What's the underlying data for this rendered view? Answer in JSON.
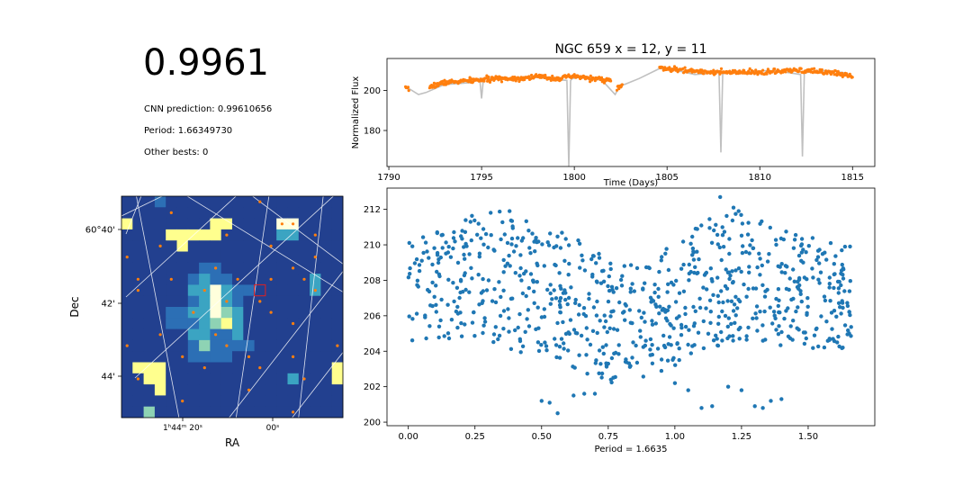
{
  "summary": {
    "score": "0.9961",
    "lines": [
      "CNN prediction: 0.99610656",
      "Period: 1.66349730",
      "Other bests: 0"
    ]
  },
  "chart_data": [
    {
      "id": "lightcurve",
      "type": "line",
      "title": "NGC 659 x = 12, y = 11",
      "xlabel": "Time (Days)",
      "ylabel": "Normalized Flux",
      "xlim": [
        1789.9,
        1816.2
      ],
      "ylim": [
        162,
        216
      ],
      "xticks": [
        1790,
        1795,
        1800,
        1805,
        1810,
        1815
      ],
      "yticks": [
        180,
        200
      ],
      "series": [
        {
          "color": "#c0c0c0",
          "x": [
            1790.9,
            1791.6,
            1792.0,
            1793.0,
            1794.5,
            1794.9,
            1795.0,
            1795.1,
            1796.5,
            1797.5,
            1798.5,
            1799.6,
            1799.7,
            1799.8,
            1799.9,
            1800.5,
            1801.5,
            1802.2,
            1802.5,
            1802.7,
            1803.5,
            1804.6,
            1805.5,
            1806.5,
            1807.8,
            1807.9,
            1808.0,
            1808.1,
            1809.0,
            1810.5,
            1811.5,
            1812.2,
            1812.3,
            1812.4,
            1812.5,
            1813.5,
            1814.5,
            1815.0
          ],
          "y": [
            202,
            198,
            199,
            203,
            204,
            206,
            196,
            206,
            206,
            207,
            206,
            205,
            162,
            205,
            206,
            207,
            205,
            198,
            203,
            203,
            206,
            211,
            210,
            208,
            209,
            169,
            208,
            209,
            209,
            210,
            209,
            208,
            167,
            209,
            209,
            210,
            209,
            207
          ]
        },
        {
          "color": "#ff7f0e",
          "point_size": 1.6,
          "segments": [
            [
              1790.9,
              1791.1
            ],
            [
              1792.2,
              1802.0
            ],
            [
              1802.3,
              1802.6
            ],
            [
              1804.6,
              1815.0
            ]
          ],
          "trend_x": [
            1790.9,
            1791.1,
            1792.2,
            1793.0,
            1794.5,
            1796.0,
            1797.0,
            1798.0,
            1799.0,
            1800.0,
            1801.0,
            1802.0,
            1802.3,
            1802.6,
            1804.6,
            1806.0,
            1808.0,
            1810.0,
            1812.0,
            1814.0,
            1815.0
          ],
          "trend_y": [
            201,
            200,
            202,
            204,
            205,
            206,
            206,
            207,
            206,
            207,
            206,
            205,
            201,
            203,
            211,
            210,
            209,
            209,
            210,
            209,
            207
          ]
        }
      ]
    },
    {
      "id": "folded",
      "type": "scatter",
      "xlabel": "Period = 1.6635",
      "xlim": [
        -0.08,
        1.75
      ],
      "ylim": [
        199.8,
        213.2
      ],
      "xticks": [
        0.0,
        0.25,
        0.5,
        0.75,
        1.0,
        1.25,
        1.5
      ],
      "xtick_labels": [
        "0.00",
        "0.25",
        "0.50",
        "0.75",
        "1.00",
        "1.25",
        "1.50"
      ],
      "yticks": [
        200,
        202,
        204,
        206,
        208,
        210,
        212
      ],
      "color": "#1f77b4",
      "n_points": 820,
      "band_centers": [
        [
          0.0,
          207.3
        ],
        [
          0.3,
          208.3
        ],
        [
          0.6,
          206.8
        ],
        [
          0.8,
          205.5
        ],
        [
          1.0,
          206.5
        ],
        [
          1.2,
          208.4
        ],
        [
          1.45,
          207.4
        ],
        [
          1.66,
          207.0
        ]
      ],
      "band_halfwidth": [
        2.8,
        3.8,
        3.8,
        3.5,
        3.6,
        3.8,
        3.2,
        3.0
      ],
      "outliers": [
        [
          0.5,
          201.2
        ],
        [
          0.53,
          201.1
        ],
        [
          0.56,
          200.5
        ],
        [
          0.62,
          201.5
        ],
        [
          0.66,
          201.6
        ],
        [
          0.7,
          201.6
        ],
        [
          0.76,
          202.4
        ],
        [
          1.0,
          202.2
        ],
        [
          1.05,
          201.8
        ],
        [
          1.1,
          200.8
        ],
        [
          1.14,
          200.9
        ],
        [
          1.2,
          202.0
        ],
        [
          1.25,
          201.8
        ],
        [
          1.3,
          200.9
        ],
        [
          1.33,
          200.8
        ],
        [
          1.36,
          201.2
        ],
        [
          1.4,
          201.3
        ],
        [
          0.38,
          211.9
        ],
        [
          1.17,
          212.7
        ],
        [
          1.22,
          212.1
        ]
      ]
    },
    {
      "id": "image",
      "type": "heatmap",
      "xlabel": "RA",
      "ylabel": "Dec",
      "xtick_labels": [
        "1ʰ44ᵐ 20ˢ",
        "00ˢ"
      ],
      "ytick_labels": [
        "60°40'",
        "42'",
        "44'"
      ],
      "rows": 20,
      "cols": 20,
      "colormap": [
        "#1a2369",
        "#22408f",
        "#2c6fb5",
        "#3ba4c2",
        "#8ed3b4",
        "#ffff8e",
        "#ffffdc"
      ],
      "cells": [
        [
          1,
          1,
          1,
          2,
          1,
          1,
          1,
          1,
          1,
          1,
          1,
          1,
          1,
          1,
          1,
          1,
          1,
          1,
          1,
          1
        ],
        [
          1,
          1,
          1,
          1,
          1,
          1,
          1,
          1,
          1,
          1,
          1,
          1,
          1,
          1,
          1,
          1,
          1,
          1,
          1,
          1
        ],
        [
          5,
          1,
          1,
          1,
          1,
          1,
          1,
          1,
          5,
          5,
          1,
          1,
          1,
          1,
          6,
          6,
          1,
          1,
          1,
          1
        ],
        [
          1,
          1,
          1,
          1,
          5,
          5,
          5,
          5,
          5,
          1,
          1,
          1,
          1,
          1,
          3,
          3,
          1,
          1,
          1,
          1
        ],
        [
          1,
          1,
          1,
          1,
          1,
          5,
          1,
          1,
          1,
          1,
          1,
          1,
          1,
          1,
          1,
          1,
          1,
          1,
          1,
          1
        ],
        [
          1,
          1,
          1,
          1,
          1,
          1,
          1,
          1,
          1,
          1,
          1,
          1,
          1,
          1,
          1,
          1,
          1,
          1,
          1,
          1
        ],
        [
          1,
          1,
          1,
          1,
          1,
          1,
          1,
          2,
          2,
          1,
          1,
          1,
          1,
          1,
          1,
          1,
          1,
          1,
          1,
          1
        ],
        [
          1,
          1,
          1,
          1,
          1,
          1,
          2,
          3,
          2,
          2,
          1,
          1,
          1,
          1,
          1,
          1,
          1,
          3,
          1,
          1
        ],
        [
          1,
          1,
          1,
          1,
          1,
          1,
          3,
          3,
          6,
          3,
          2,
          2,
          1,
          1,
          1,
          1,
          1,
          3,
          1,
          1
        ],
        [
          1,
          1,
          1,
          1,
          1,
          1,
          2,
          3,
          6,
          3,
          2,
          1,
          1,
          1,
          1,
          1,
          1,
          1,
          1,
          1
        ],
        [
          1,
          1,
          1,
          1,
          2,
          2,
          3,
          3,
          6,
          4,
          3,
          1,
          1,
          1,
          1,
          1,
          1,
          1,
          1,
          1
        ],
        [
          1,
          1,
          1,
          1,
          2,
          2,
          2,
          3,
          4,
          5,
          3,
          1,
          1,
          1,
          1,
          1,
          1,
          1,
          1,
          1
        ],
        [
          1,
          1,
          1,
          1,
          1,
          1,
          3,
          3,
          2,
          2,
          3,
          1,
          1,
          1,
          1,
          1,
          1,
          1,
          1,
          1
        ],
        [
          1,
          1,
          1,
          1,
          1,
          1,
          2,
          4,
          2,
          2,
          2,
          2,
          1,
          1,
          1,
          1,
          1,
          1,
          1,
          1
        ],
        [
          1,
          1,
          1,
          1,
          1,
          1,
          2,
          2,
          2,
          2,
          1,
          1,
          1,
          1,
          1,
          1,
          1,
          1,
          1,
          1
        ],
        [
          1,
          5,
          5,
          5,
          1,
          1,
          1,
          1,
          1,
          1,
          1,
          1,
          1,
          1,
          1,
          1,
          1,
          1,
          1,
          5
        ],
        [
          1,
          1,
          5,
          5,
          1,
          1,
          1,
          1,
          1,
          1,
          1,
          1,
          1,
          1,
          1,
          3,
          1,
          1,
          1,
          5
        ],
        [
          1,
          1,
          1,
          5,
          1,
          1,
          1,
          1,
          1,
          1,
          1,
          1,
          1,
          1,
          1,
          1,
          1,
          1,
          1,
          1
        ],
        [
          1,
          1,
          1,
          1,
          1,
          1,
          1,
          1,
          1,
          1,
          1,
          1,
          1,
          1,
          1,
          1,
          1,
          1,
          1,
          1
        ],
        [
          1,
          1,
          4,
          1,
          1,
          1,
          1,
          1,
          1,
          1,
          1,
          1,
          1,
          1,
          1,
          1,
          1,
          1,
          1,
          1
        ]
      ],
      "marker_color": "#ff7f0e",
      "stars": [
        [
          12,
          0
        ],
        [
          4,
          1
        ],
        [
          15,
          2
        ],
        [
          14,
          2
        ],
        [
          9,
          3
        ],
        [
          17,
          3
        ],
        [
          3,
          4
        ],
        [
          13,
          4
        ],
        [
          0,
          5
        ],
        [
          17,
          5
        ],
        [
          8,
          6
        ],
        [
          15,
          6
        ],
        [
          1,
          7
        ],
        [
          4,
          7
        ],
        [
          10,
          7
        ],
        [
          13,
          7
        ],
        [
          16,
          7
        ],
        [
          7,
          8
        ],
        [
          17,
          8
        ],
        [
          1,
          8
        ],
        [
          9,
          9
        ],
        [
          12,
          9
        ],
        [
          6,
          10
        ],
        [
          13,
          10
        ],
        [
          15,
          11
        ],
        [
          3,
          12
        ],
        [
          8,
          12
        ],
        [
          9,
          13
        ],
        [
          19,
          13
        ],
        [
          0,
          13
        ],
        [
          5,
          14
        ],
        [
          11,
          14
        ],
        [
          15,
          14
        ],
        [
          7,
          15
        ],
        [
          12,
          15
        ],
        [
          1,
          16
        ],
        [
          16,
          16
        ],
        [
          11,
          17
        ],
        [
          5,
          18
        ],
        [
          15,
          19
        ]
      ],
      "target_cell": [
        12,
        8
      ]
    }
  ]
}
